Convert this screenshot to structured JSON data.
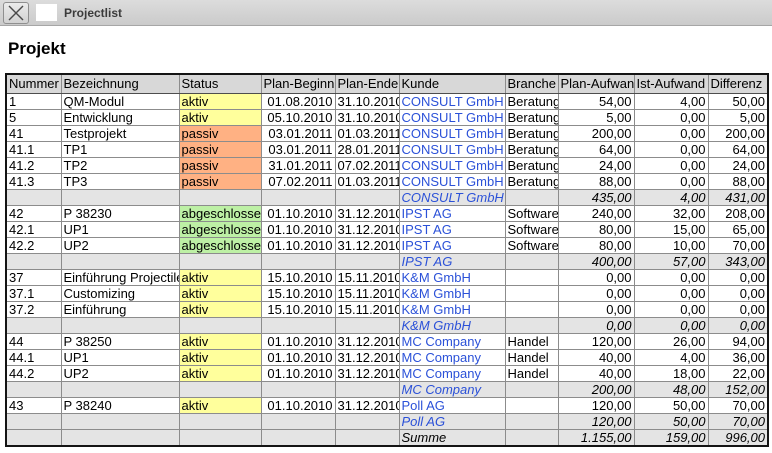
{
  "tab_bar": {
    "title": "Projectlist",
    "close_icon": "close-icon"
  },
  "page": {
    "title": "Projekt"
  },
  "table": {
    "columns": [
      "Nummer",
      "Bezeichnung",
      "Status",
      "Plan-Beginn",
      "Plan-Ende",
      "Kunde",
      "Branche",
      "Plan-Aufwand",
      "Ist-Aufwand",
      "Differenz"
    ],
    "status_colors": {
      "aktiv": "#ffff9c",
      "passiv": "#ffb183",
      "abgeschlossen": "#bdf0a5"
    },
    "summary_row_color": "#e4e4e4",
    "header_row_color": "#d8d8d8",
    "link_color": "#2b51d8",
    "rows": [
      {
        "type": "data",
        "cells": [
          "1",
          "QM-Modul",
          "aktiv",
          "01.08.2010",
          "31.10.2010",
          "CONSULT GmbH",
          "Beratung",
          "54,00",
          "4,00",
          "50,00"
        ]
      },
      {
        "type": "data",
        "cells": [
          "5",
          "Entwicklung",
          "aktiv",
          "05.10.2010",
          "31.10.2010",
          "CONSULT GmbH",
          "Beratung",
          "5,00",
          "0,00",
          "5,00"
        ]
      },
      {
        "type": "data",
        "cells": [
          "41",
          "Testprojekt",
          "passiv",
          "03.01.2011",
          "01.03.2011",
          "CONSULT GmbH",
          "Beratung",
          "200,00",
          "0,00",
          "200,00"
        ]
      },
      {
        "type": "data",
        "cells": [
          "41.1",
          "TP1",
          "passiv",
          "03.01.2011",
          "28.01.2011",
          "CONSULT GmbH",
          "Beratung",
          "64,00",
          "0,00",
          "64,00"
        ]
      },
      {
        "type": "data",
        "cells": [
          "41.2",
          "TP2",
          "passiv",
          "31.01.2011",
          "07.02.2011",
          "CONSULT GmbH",
          "Beratung",
          "24,00",
          "0,00",
          "24,00"
        ]
      },
      {
        "type": "data",
        "cells": [
          "41.3",
          "TP3",
          "passiv",
          "07.02.2011",
          "01.03.2011",
          "CONSULT GmbH",
          "Beratung",
          "88,00",
          "0,00",
          "88,00"
        ]
      },
      {
        "type": "summary",
        "cells": [
          "",
          "",
          "",
          "",
          "",
          "CONSULT GmbH",
          "",
          "435,00",
          "4,00",
          "431,00"
        ]
      },
      {
        "type": "data",
        "cells": [
          "42",
          "P 38230",
          "abgeschlossen",
          "01.10.2010",
          "31.12.2010",
          "IPST AG",
          "Software",
          "240,00",
          "32,00",
          "208,00"
        ]
      },
      {
        "type": "data",
        "cells": [
          "42.1",
          "UP1",
          "abgeschlossen",
          "01.10.2010",
          "31.12.2010",
          "IPST AG",
          "Software",
          "80,00",
          "15,00",
          "65,00"
        ]
      },
      {
        "type": "data",
        "cells": [
          "42.2",
          "UP2",
          "abgeschlossen",
          "01.10.2010",
          "31.12.2010",
          "IPST AG",
          "Software",
          "80,00",
          "10,00",
          "70,00"
        ]
      },
      {
        "type": "summary",
        "cells": [
          "",
          "",
          "",
          "",
          "",
          "IPST AG",
          "",
          "400,00",
          "57,00",
          "343,00"
        ]
      },
      {
        "type": "data",
        "cells": [
          "37",
          "Einführung Projectile",
          "aktiv",
          "15.10.2010",
          "15.11.2010",
          "K&M GmbH",
          "",
          "0,00",
          "0,00",
          "0,00"
        ]
      },
      {
        "type": "data",
        "cells": [
          "37.1",
          "Customizing",
          "aktiv",
          "15.10.2010",
          "15.11.2010",
          "K&M GmbH",
          "",
          "0,00",
          "0,00",
          "0,00"
        ]
      },
      {
        "type": "data",
        "cells": [
          "37.2",
          "Einführung",
          "aktiv",
          "15.10.2010",
          "15.11.2010",
          "K&M GmbH",
          "",
          "0,00",
          "0,00",
          "0,00"
        ]
      },
      {
        "type": "summary",
        "cells": [
          "",
          "",
          "",
          "",
          "",
          "K&M GmbH",
          "",
          "0,00",
          "0,00",
          "0,00"
        ]
      },
      {
        "type": "data",
        "cells": [
          "44",
          "P 38250",
          "aktiv",
          "01.10.2010",
          "31.12.2010",
          "MC Company",
          "Handel",
          "120,00",
          "26,00",
          "94,00"
        ]
      },
      {
        "type": "data",
        "cells": [
          "44.1",
          "UP1",
          "aktiv",
          "01.10.2010",
          "31.12.2010",
          "MC Company",
          "Handel",
          "40,00",
          "4,00",
          "36,00"
        ]
      },
      {
        "type": "data",
        "cells": [
          "44.2",
          "UP2",
          "aktiv",
          "01.10.2010",
          "31.12.2010",
          "MC Company",
          "Handel",
          "40,00",
          "18,00",
          "22,00"
        ]
      },
      {
        "type": "summary",
        "cells": [
          "",
          "",
          "",
          "",
          "",
          "MC Company",
          "",
          "200,00",
          "48,00",
          "152,00"
        ]
      },
      {
        "type": "data",
        "cells": [
          "43",
          "P 38240",
          "aktiv",
          "01.10.2010",
          "31.12.2010",
          "Poll AG",
          "",
          "120,00",
          "50,00",
          "70,00"
        ]
      },
      {
        "type": "summary",
        "cells": [
          "",
          "",
          "",
          "",
          "",
          "Poll AG",
          "",
          "120,00",
          "50,00",
          "70,00"
        ]
      },
      {
        "type": "total",
        "cells": [
          "",
          "",
          "",
          "",
          "",
          "Summe",
          "",
          "1.155,00",
          "159,00",
          "996,00"
        ]
      }
    ]
  }
}
